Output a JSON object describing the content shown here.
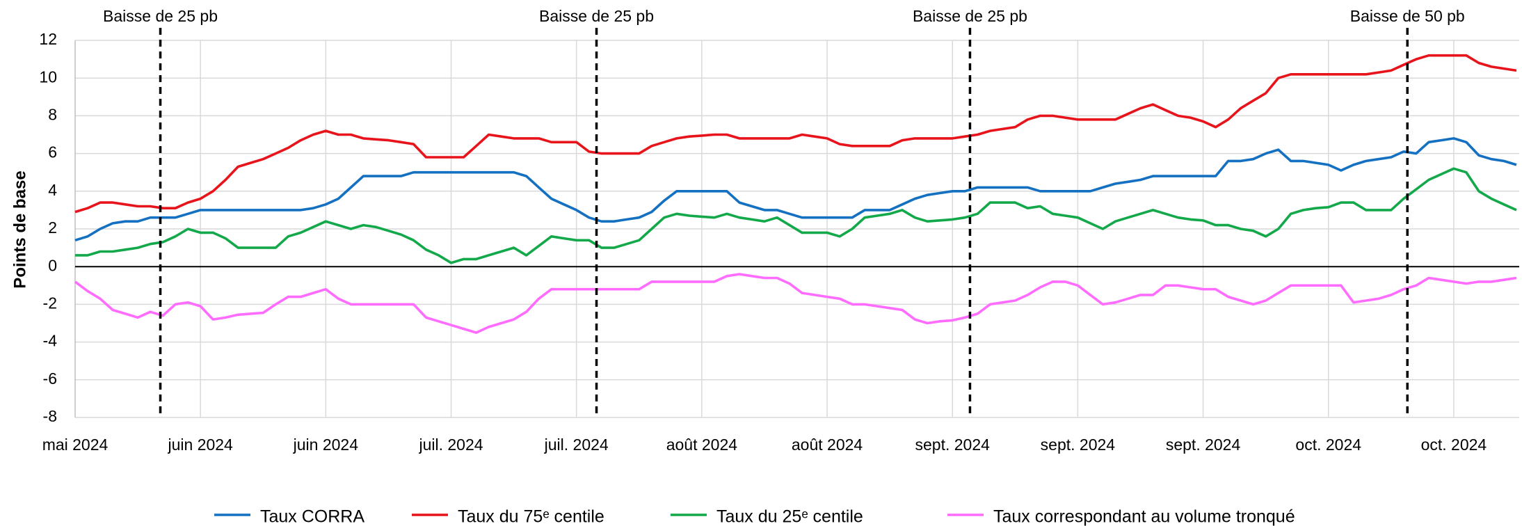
{
  "chart_data": {
    "type": "line",
    "y_label": "Points de base",
    "categories": [
      "mai 2024",
      null,
      null,
      null,
      null,
      null,
      null,
      null,
      null,
      null,
      "juin 2024",
      null,
      null,
      null,
      null,
      null,
      null,
      null,
      null,
      null,
      "juin 2024",
      null,
      null,
      null,
      null,
      null,
      null,
      null,
      null,
      null,
      "juil. 2024",
      null,
      null,
      null,
      null,
      null,
      null,
      null,
      null,
      null,
      "juil. 2024",
      null,
      null,
      null,
      null,
      null,
      null,
      null,
      null,
      null,
      "août 2024",
      null,
      null,
      null,
      null,
      null,
      null,
      null,
      null,
      null,
      "août 2024",
      null,
      null,
      null,
      null,
      null,
      null,
      null,
      null,
      null,
      "sept. 2024",
      null,
      null,
      null,
      null,
      null,
      null,
      null,
      null,
      null,
      "sept. 2024",
      null,
      null,
      null,
      null,
      null,
      null,
      null,
      null,
      null,
      "sept. 2024",
      null,
      null,
      null,
      null,
      null,
      null,
      null,
      null,
      null,
      "oct. 2024",
      null,
      null,
      null,
      null,
      null,
      null,
      null,
      null,
      null,
      "oct. 2024",
      null,
      null,
      null,
      null,
      null
    ],
    "series": [
      {
        "name": "Taux CORRA",
        "color": "#1470c0",
        "values": [
          1.4,
          1.6,
          2.0,
          2.3,
          2.4,
          2.4,
          2.6,
          2.6,
          2.6,
          2.8,
          3.0,
          3.0,
          3.0,
          3.0,
          3.0,
          3.0,
          3.0,
          3.0,
          3.0,
          3.1,
          3.3,
          3.6,
          4.2,
          4.8,
          4.8,
          4.8,
          4.8,
          5.0,
          5.0,
          5.0,
          5.0,
          5.0,
          5.0,
          5.0,
          5.0,
          5.0,
          4.8,
          4.2,
          3.6,
          3.3,
          3.0,
          2.6,
          2.4,
          2.4,
          2.5,
          2.6,
          2.9,
          3.5,
          4.0,
          4.0,
          4.0,
          4.0,
          4.0,
          3.4,
          3.2,
          3.0,
          3.0,
          2.8,
          2.6,
          2.6,
          2.6,
          2.6,
          2.6,
          3.0,
          3.0,
          3.0,
          3.3,
          3.6,
          3.8,
          3.9,
          4.0,
          4.0,
          4.2,
          4.2,
          4.2,
          4.2,
          4.2,
          4.0,
          4.0,
          4.0,
          4.0,
          4.0,
          4.2,
          4.4,
          4.5,
          4.6,
          4.8,
          4.8,
          4.8,
          4.8,
          4.8,
          4.8,
          5.6,
          5.6,
          5.7,
          6.0,
          6.2,
          5.6,
          5.6,
          5.5,
          5.4,
          5.1,
          5.4,
          5.6,
          5.7,
          5.8,
          6.1,
          6.0,
          6.6,
          6.7,
          6.8,
          6.6,
          5.9,
          5.7,
          5.6,
          5.4
        ]
      },
      {
        "name": "Taux du 75ᵉ centile",
        "color": "#e8141c",
        "values": [
          2.9,
          3.1,
          3.4,
          3.4,
          3.3,
          3.2,
          3.2,
          3.1,
          3.1,
          3.4,
          3.6,
          4.0,
          4.6,
          5.3,
          5.5,
          5.7,
          6.0,
          6.3,
          6.7,
          7.0,
          7.2,
          7.0,
          7.0,
          6.8,
          6.75,
          6.7,
          6.6,
          6.5,
          5.8,
          5.8,
          5.8,
          5.8,
          6.4,
          7.0,
          6.9,
          6.8,
          6.8,
          6.8,
          6.6,
          6.6,
          6.6,
          6.1,
          6.0,
          6.0,
          6.0,
          6.0,
          6.4,
          6.6,
          6.8,
          6.9,
          6.95,
          7.0,
          7.0,
          6.8,
          6.8,
          6.8,
          6.8,
          6.8,
          7.0,
          6.9,
          6.8,
          6.5,
          6.4,
          6.4,
          6.4,
          6.4,
          6.7,
          6.8,
          6.8,
          6.8,
          6.8,
          6.9,
          7.0,
          7.2,
          7.3,
          7.4,
          7.8,
          8.0,
          8.0,
          7.9,
          7.8,
          7.8,
          7.8,
          7.8,
          8.1,
          8.4,
          8.6,
          8.3,
          8.0,
          7.9,
          7.7,
          7.4,
          7.8,
          8.4,
          8.8,
          9.2,
          10.0,
          10.2,
          10.2,
          10.2,
          10.2,
          10.2,
          10.2,
          10.2,
          10.3,
          10.4,
          10.7,
          11.0,
          11.2,
          11.2,
          11.2,
          11.2,
          10.8,
          10.6,
          10.5,
          10.4
        ]
      },
      {
        "name": "Taux du 25ᵉ centile",
        "color": "#13a84a",
        "values": [
          0.6,
          0.6,
          0.8,
          0.8,
          0.9,
          1.0,
          1.2,
          1.3,
          1.6,
          2.0,
          1.8,
          1.8,
          1.5,
          1.0,
          1.0,
          1.0,
          1.0,
          1.6,
          1.8,
          2.1,
          2.4,
          2.2,
          2.0,
          2.2,
          2.1,
          1.9,
          1.7,
          1.4,
          0.9,
          0.6,
          0.2,
          0.4,
          0.4,
          0.6,
          0.8,
          1.0,
          0.6,
          1.1,
          1.6,
          1.5,
          1.4,
          1.4,
          1.0,
          1.0,
          1.2,
          1.4,
          2.0,
          2.6,
          2.8,
          2.7,
          2.65,
          2.6,
          2.8,
          2.6,
          2.5,
          2.4,
          2.6,
          2.2,
          1.8,
          1.8,
          1.8,
          1.6,
          2.0,
          2.6,
          2.7,
          2.8,
          3.0,
          2.6,
          2.4,
          2.45,
          2.5,
          2.6,
          2.8,
          3.4,
          3.4,
          3.4,
          3.1,
          3.2,
          2.8,
          2.7,
          2.6,
          2.3,
          2.0,
          2.4,
          2.6,
          2.8,
          3.0,
          2.8,
          2.6,
          2.5,
          2.45,
          2.2,
          2.2,
          2.0,
          1.9,
          1.6,
          2.0,
          2.8,
          3.0,
          3.1,
          3.15,
          3.4,
          3.4,
          3.0,
          3.0,
          3.0,
          3.6,
          4.1,
          4.6,
          4.9,
          5.2,
          5.0,
          4.0,
          3.6,
          3.3,
          3.0
        ]
      },
      {
        "name": "Taux correspondant au volume tronqué",
        "color": "#ff6cff",
        "values": [
          -0.8,
          -1.3,
          -1.7,
          -2.3,
          -2.5,
          -2.7,
          -2.4,
          -2.6,
          -2.0,
          -1.9,
          -2.1,
          -2.8,
          -2.7,
          -2.55,
          -2.5,
          -2.45,
          -2.0,
          -1.6,
          -1.6,
          -1.4,
          -1.2,
          -1.7,
          -2.0,
          -2.0,
          -2.0,
          -2.0,
          -2.0,
          -2.0,
          -2.7,
          -2.9,
          -3.1,
          -3.3,
          -3.5,
          -3.2,
          -3.0,
          -2.8,
          -2.4,
          -1.7,
          -1.2,
          -1.2,
          -1.2,
          -1.2,
          -1.2,
          -1.2,
          -1.2,
          -1.2,
          -0.8,
          -0.8,
          -0.8,
          -0.8,
          -0.8,
          -0.8,
          -0.5,
          -0.4,
          -0.5,
          -0.6,
          -0.6,
          -0.9,
          -1.4,
          -1.5,
          -1.6,
          -1.7,
          -2.0,
          -2.0,
          -2.1,
          -2.2,
          -2.3,
          -2.8,
          -3.0,
          -2.9,
          -2.85,
          -2.7,
          -2.5,
          -2.0,
          -1.9,
          -1.8,
          -1.5,
          -1.1,
          -0.8,
          -0.8,
          -1.0,
          -1.5,
          -2.0,
          -1.9,
          -1.7,
          -1.5,
          -1.5,
          -1.0,
          -1.0,
          -1.1,
          -1.2,
          -1.2,
          -1.6,
          -1.8,
          -2.0,
          -1.8,
          -1.4,
          -1.0,
          -1.0,
          -1.0,
          -1.0,
          -1.0,
          -1.9,
          -1.8,
          -1.7,
          -1.5,
          -1.2,
          -1.0,
          -0.6,
          -0.7,
          -0.8,
          -0.9,
          -0.8,
          -0.8,
          -0.7,
          -0.6
        ]
      }
    ],
    "annotations": [
      {
        "text": "Baisse de 25 pb",
        "x": 6.8
      },
      {
        "text": "Baisse de 25 pb",
        "x": 41.6
      },
      {
        "text": "Baisse de 25 pb",
        "x": 71.4
      },
      {
        "text": "Baisse de 50 pb",
        "x": 106.3
      }
    ],
    "ylim": [
      -8,
      12
    ],
    "yticks": [
      -8,
      -6,
      -4,
      -2,
      0,
      2,
      4,
      6,
      8,
      10,
      12
    ],
    "grid": true,
    "legend": "bottom"
  }
}
